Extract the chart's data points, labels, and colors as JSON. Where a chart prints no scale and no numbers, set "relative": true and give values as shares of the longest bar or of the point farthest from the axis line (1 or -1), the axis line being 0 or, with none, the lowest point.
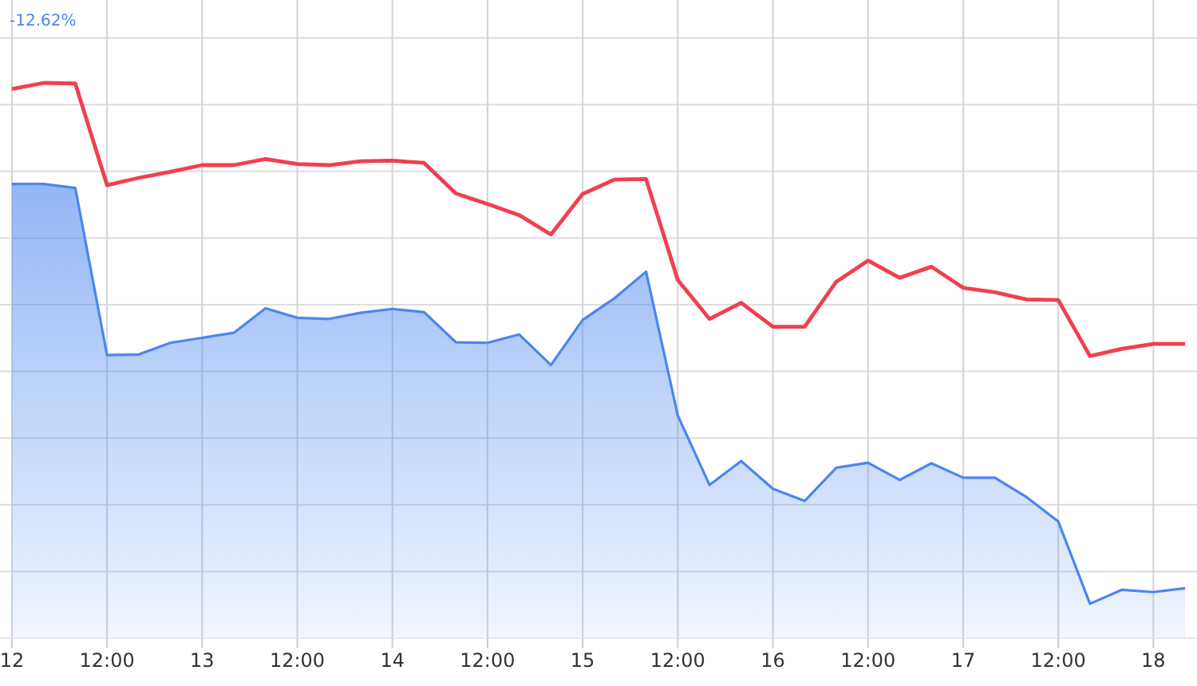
{
  "chart_data": {
    "type": "area",
    "relative": true,
    "grid": true,
    "annotations": [
      "-12.62%"
    ],
    "categories": [
      "12",
      null,
      null,
      "12:00",
      null,
      null,
      "13",
      null,
      null,
      "12:00",
      null,
      null,
      "14",
      null,
      null,
      "12:00",
      null,
      null,
      "15",
      null,
      null,
      "12:00",
      null,
      null,
      "16",
      null,
      null,
      "12:00",
      null,
      null,
      "17",
      null,
      null,
      "12:00",
      null,
      null,
      "18",
      null
    ],
    "series": [
      {
        "type": "area",
        "color": "#4a86f0",
        "values": [
          0.818,
          0.818,
          0.811,
          0.51,
          0.511,
          0.532,
          0.541,
          0.55,
          0.594,
          0.577,
          0.575,
          0.586,
          0.593,
          0.587,
          0.533,
          0.532,
          0.547,
          0.492,
          0.573,
          0.612,
          0.66,
          0.401,
          0.276,
          0.319,
          0.269,
          0.247,
          0.307,
          0.316,
          0.285,
          0.315,
          0.289,
          0.289,
          0.254,
          0.21,
          0.062,
          0.087,
          0.083,
          0.09
        ]
      },
      {
        "type": "line",
        "color": "#f0404f",
        "values": [
          0.989,
          1.0,
          0.999,
          0.816,
          0.829,
          0.84,
          0.852,
          0.852,
          0.863,
          0.854,
          0.852,
          0.859,
          0.86,
          0.856,
          0.801,
          0.782,
          0.762,
          0.727,
          0.8,
          0.826,
          0.827,
          0.645,
          0.575,
          0.604,
          0.561,
          0.561,
          0.642,
          0.68,
          0.649,
          0.669,
          0.631,
          0.623,
          0.61,
          0.609,
          0.508,
          0.521,
          0.53,
          0.53
        ]
      }
    ]
  }
}
